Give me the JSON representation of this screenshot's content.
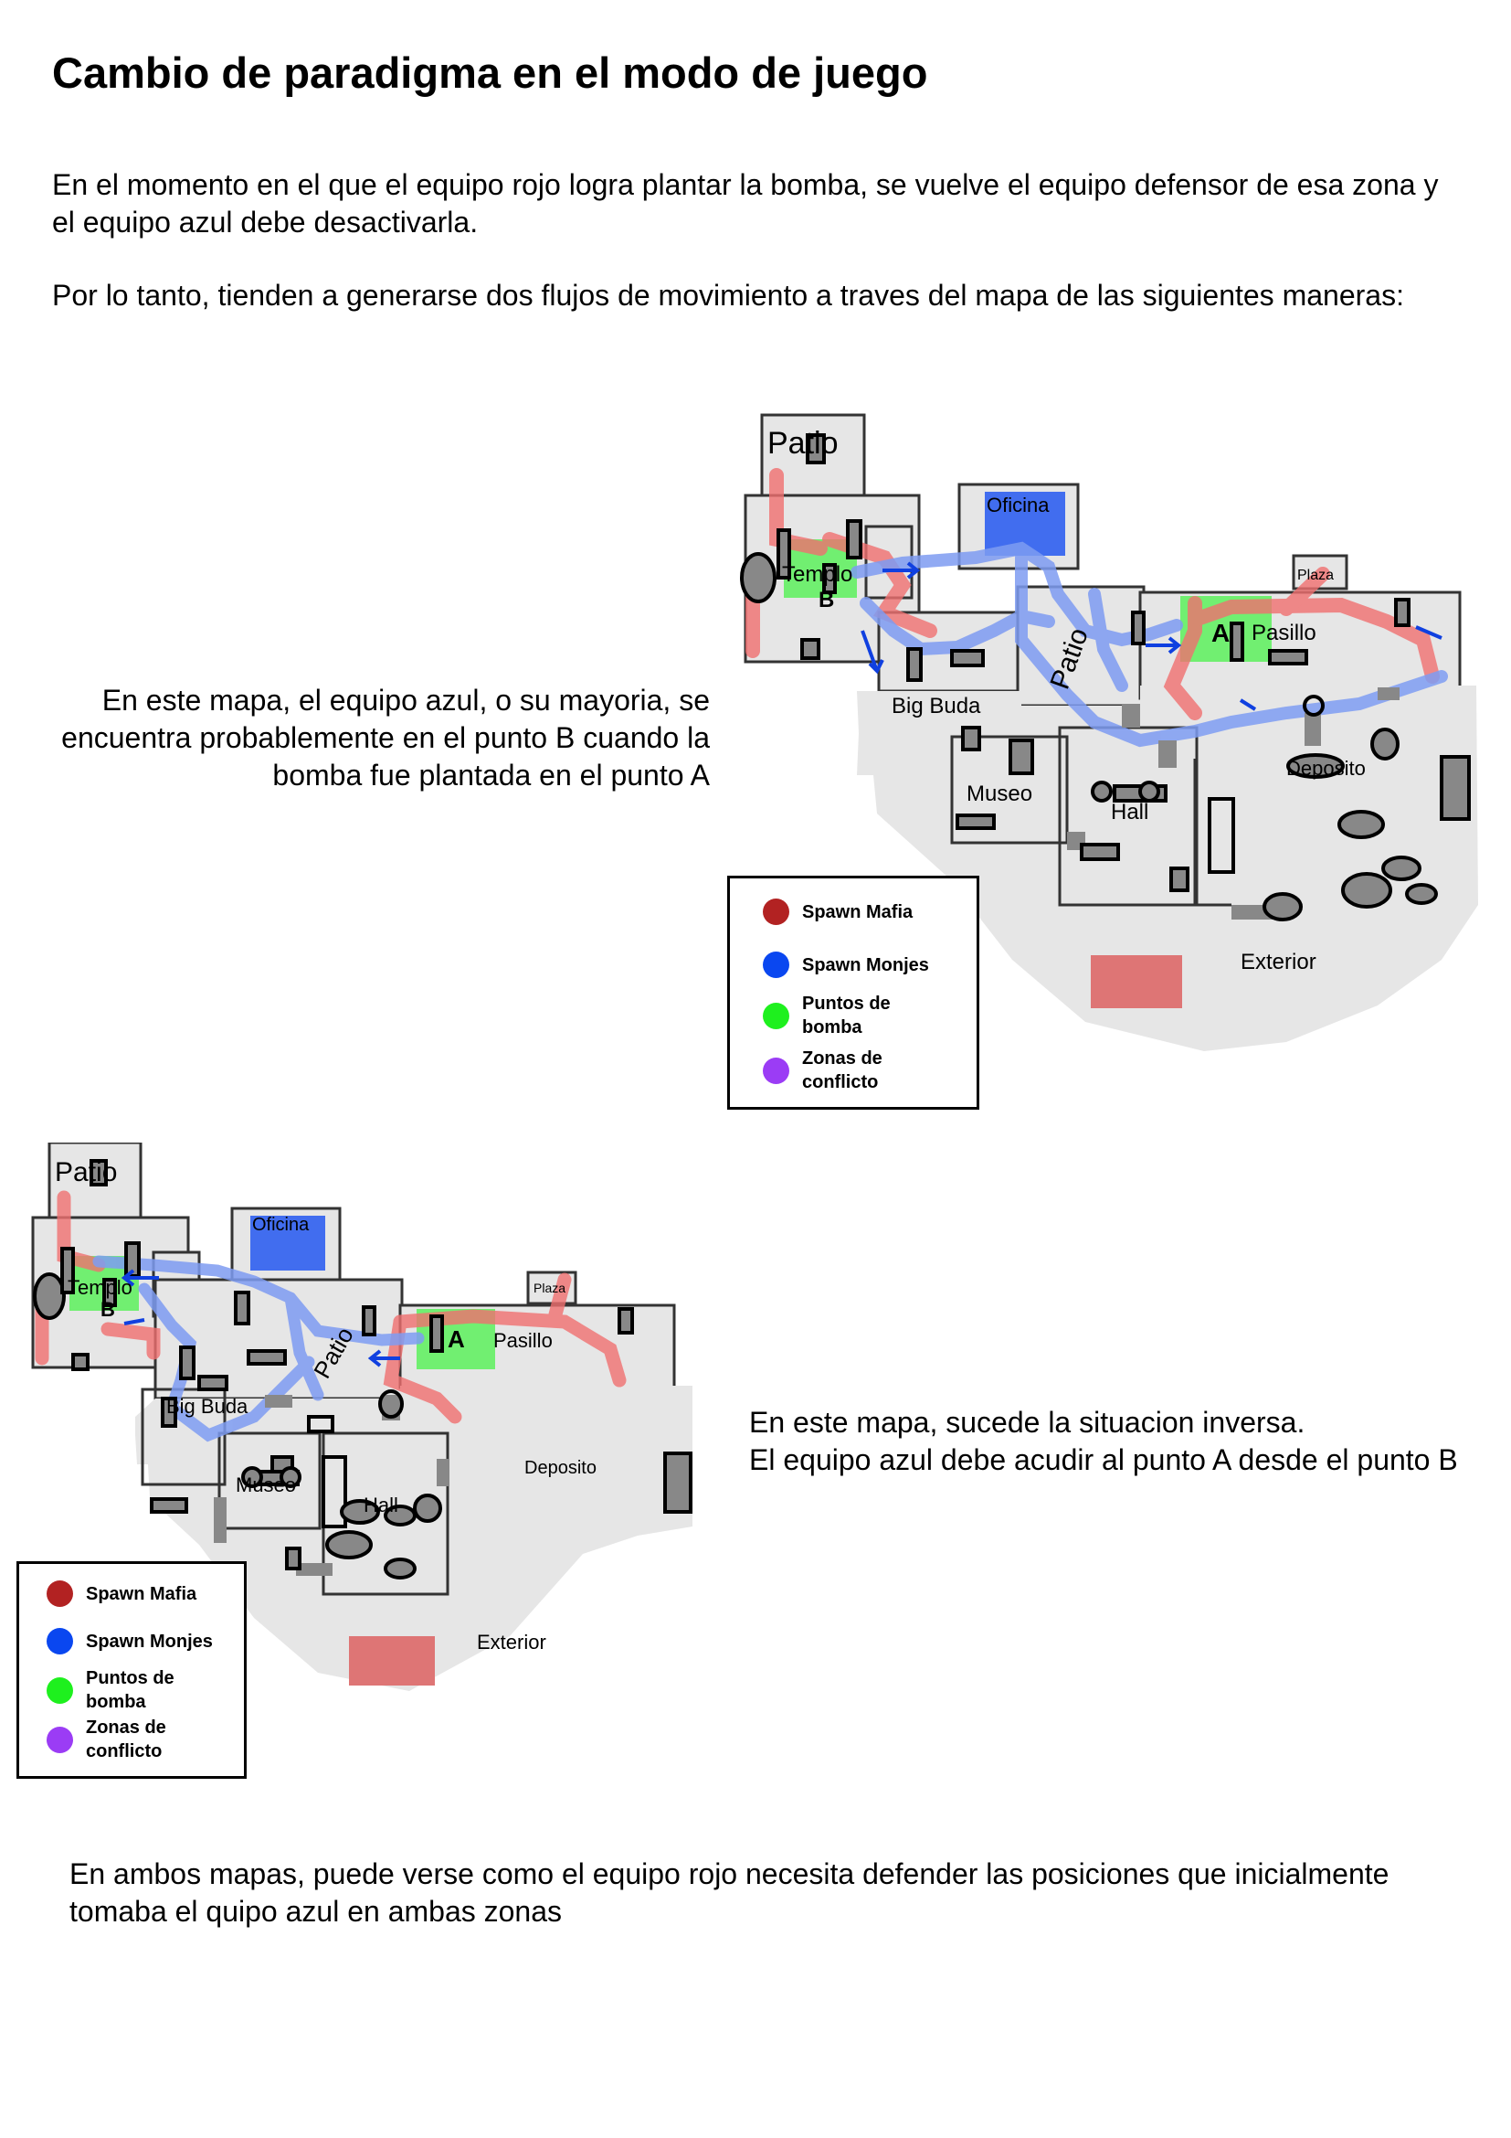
{
  "title": "Cambio de paradigma en el modo de juego",
  "intro": {
    "p1": "En el momento en el que el equipo rojo logra plantar la bomba, se vuelve el equipo defensor de esa zona y el equipo azul debe desactivarla.",
    "p2": "Por lo tanto, tienden a generarse dos flujos de movimiento a traves del mapa de las siguientes maneras:"
  },
  "map1": {
    "caption": "En este mapa, el equipo azul, o su mayoria, se encuentra probablemente en el punto B cuando la bomba fue plantada en el punto A",
    "labels": {
      "patio": "Patio",
      "oficina": "Oficina",
      "templo": "Templo",
      "b": "B",
      "patio2": "Patio",
      "a": "A",
      "pasillo": "Pasillo",
      "plaza": "Plaza",
      "bigbuda": "Big Buda",
      "museo": "Museo",
      "hall": "Hall",
      "deposito": "Deposito",
      "exterior": "Exterior"
    }
  },
  "map2": {
    "caption_line1": "En este mapa, sucede la situacion inversa.",
    "caption_line2": "El equipo azul debe acudir al punto A desde el punto B",
    "labels": {
      "patio": "Patio",
      "oficina": "Oficina",
      "templo": "Templo",
      "b": "B",
      "patio2": "Patio",
      "a": "A",
      "pasillo": "Pasillo",
      "plaza": "Plaza",
      "bigbuda": "Big Buda",
      "museo": "Museo",
      "hall": "Hall",
      "deposito": "Deposito",
      "exterior": "Exterior"
    }
  },
  "legend": {
    "items": [
      {
        "label": "Spawn Mafia",
        "color": "#b22222"
      },
      {
        "label": "Spawn Monjes",
        "color": "#0a47f0"
      },
      {
        "label": "Puntos  de bomba",
        "color": "#1ef01e"
      },
      {
        "label": "Zonas de conflicto",
        "color": "#9b3cf5"
      }
    ]
  },
  "conclusion": "En ambos mapas, puede verse como el equipo rojo necesita defender las posiciones que inicialmente tomaba el quipo azul en ambas zonas",
  "colors": {
    "floor": "#e6e6e6",
    "red_route": "#f07070",
    "blue_route": "#7e9cf2",
    "bomb_site": "#5cf05c",
    "spawn_monjes": "#2f5ff0",
    "spawn_mafia_zone": "#de7575"
  }
}
